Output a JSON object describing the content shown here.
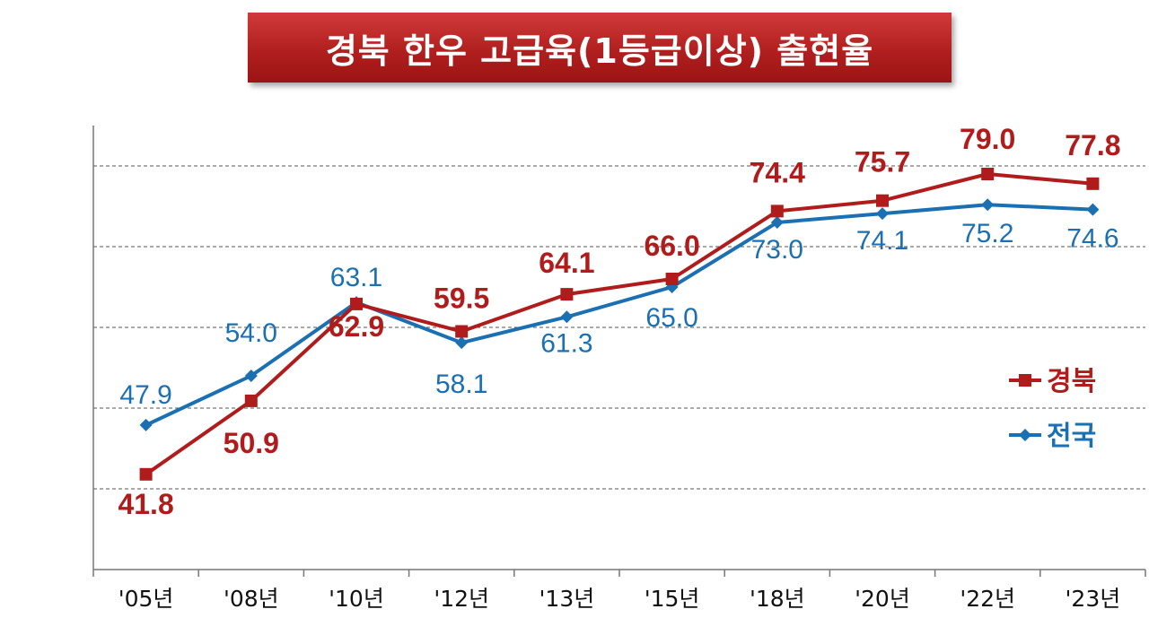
{
  "title": "경북 한우 고급육(1등급이상) 출현율",
  "colors": {
    "gyeongbuk": "#b01c1c",
    "national": "#1b6fb3",
    "title_bg": "#b11f1f"
  },
  "chart_data": {
    "type": "line",
    "title": "경북 한우 고급육(1등급이상) 출현율",
    "categories": [
      "'05년",
      "'08년",
      "'10년",
      "'12년",
      "'13년",
      "'15년",
      "'18년",
      "'20년",
      "'22년",
      "'23년"
    ],
    "series": [
      {
        "name": "경북",
        "values": [
          41.8,
          50.9,
          62.9,
          59.5,
          64.1,
          66.0,
          74.4,
          75.7,
          79.0,
          77.8
        ],
        "marker": "square",
        "color": "#b01c1c"
      },
      {
        "name": "전국",
        "values": [
          47.9,
          54.0,
          63.1,
          58.1,
          61.3,
          65.0,
          73.0,
          74.1,
          75.2,
          74.6
        ],
        "marker": "diamond",
        "color": "#1b6fb3"
      }
    ],
    "ylim": [
      30,
      85
    ],
    "grid": true,
    "legend": "right"
  }
}
